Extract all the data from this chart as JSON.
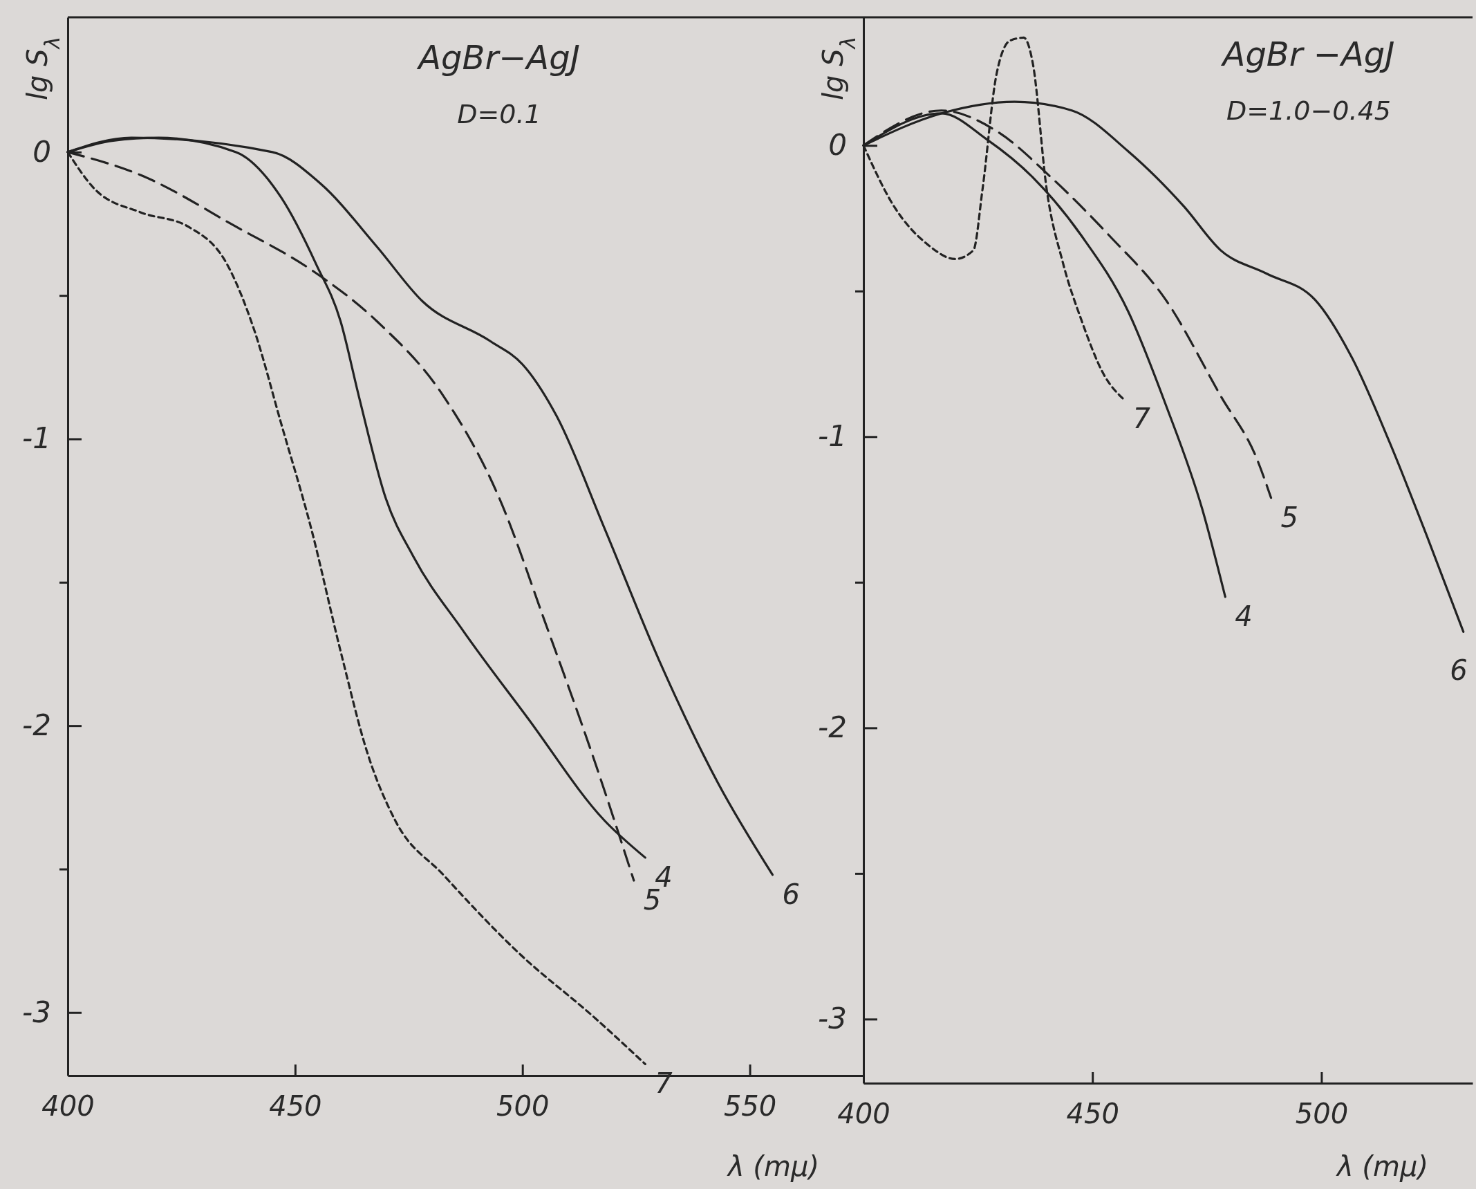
{
  "chart_data": [
    {
      "type": "line",
      "title": "AgBr−AgJ",
      "subtitle": "D=0.1",
      "xlabel": "λ (mμ)",
      "ylabel": "lg S$_{λ}$",
      "xlim": [
        400,
        575
      ],
      "ylim": [
        -3.22,
        0.47
      ],
      "xticks": [
        400,
        450,
        500,
        550
      ],
      "yticks": [
        0,
        {
          "value": -0.5,
          "label": null
        },
        -1,
        {
          "value": -1.5,
          "label": null
        },
        -2,
        {
          "value": -2.5,
          "label": null
        },
        -3
      ],
      "series": [
        {
          "name": "4",
          "color": "#222222",
          "line_style": "solid",
          "x": [
            400,
            410,
            420,
            437,
            447,
            454.6,
            460,
            464,
            470,
            476,
            487,
            501,
            518,
            527
          ],
          "values": [
            0,
            0.04,
            0.05,
            0.0,
            -0.16,
            -0.39,
            -0.59,
            -0.85,
            -1.21,
            -1.41,
            -1.67,
            -1.97,
            -2.33,
            -2.46
          ]
        },
        {
          "name": "5",
          "color": "#222222",
          "line_style": "dashed",
          "x": [
            400,
            416,
            437,
            453.5,
            468,
            482.6,
            495,
            505,
            516,
            524.5
          ],
          "values": [
            0,
            -0.08,
            -0.26,
            -0.41,
            -0.59,
            -0.85,
            -1.21,
            -1.64,
            -2.13,
            -2.54
          ]
        },
        {
          "name": "6",
          "color": "#222222",
          "line_style": "solid",
          "x": [
            400,
            414,
            445,
            455.6,
            468,
            478,
            493,
            500,
            507.5,
            518,
            530,
            543,
            555
          ],
          "values": [
            0,
            0.05,
            0.0,
            -0.11,
            -0.33,
            -0.52,
            -0.66,
            -0.74,
            -0.92,
            -1.31,
            -1.77,
            -2.2,
            -2.52
          ]
        },
        {
          "name": "7",
          "color": "#222222",
          "line_style": "dotted",
          "x": [
            400,
            406,
            416,
            426.5,
            435,
            441,
            447,
            453.5,
            460,
            466,
            472,
            482.6,
            499,
            516,
            527
          ],
          "values": [
            0,
            -0.13,
            -0.21,
            -0.26,
            -0.39,
            -0.62,
            -0.95,
            -1.31,
            -1.74,
            -2.1,
            -2.33,
            -2.52,
            -2.79,
            -3.02,
            -3.18
          ]
        }
      ]
    },
    {
      "type": "line",
      "title": "AgBr −AgJ",
      "subtitle": "D=1.0−0.45",
      "xlabel": "λ (mμ)",
      "ylabel": "lg S$_{λ}$",
      "xlim": [
        400,
        533
      ],
      "ylim": [
        -3.22,
        0.44
      ],
      "xticks": [
        400,
        450,
        500
      ],
      "yticks": [
        0,
        {
          "value": -0.5,
          "label": null
        },
        -1,
        {
          "value": -1.5,
          "label": null
        },
        -2,
        {
          "value": -2.5,
          "label": null
        },
        -3
      ],
      "series": [
        {
          "name": "4",
          "color": "#222222",
          "line_style": "solid",
          "x": [
            400,
            417,
            427,
            437,
            447.6,
            457.8,
            466,
            474,
            479
          ],
          "values": [
            0,
            0.11,
            0.02,
            -0.11,
            -0.31,
            -0.57,
            -0.89,
            -1.25,
            -1.55
          ]
        },
        {
          "name": "5",
          "color": "#222222",
          "line_style": "dashed",
          "x": [
            400,
            417,
            429,
            441,
            453.7,
            466,
            478,
            486,
            489
          ],
          "values": [
            0,
            0.12,
            0.05,
            -0.11,
            -0.31,
            -0.53,
            -0.86,
            -1.08,
            -1.21
          ]
        },
        {
          "name": "6",
          "color": "#222222",
          "line_style": "solid",
          "x": [
            400,
            417,
            433,
            445.5,
            457.8,
            470,
            478,
            488,
            498.6,
            506.7,
            514.9,
            523,
            531
          ],
          "values": [
            0,
            0.11,
            0.15,
            0.12,
            -0.02,
            -0.21,
            -0.36,
            -0.44,
            -0.53,
            -0.73,
            -1.02,
            -1.34,
            -1.67
          ]
        },
        {
          "name": "7",
          "color": "#222222",
          "line_style": "dotted",
          "x": [
            400,
            406.7,
            414,
            420,
            424,
            426,
            429,
            432,
            435,
            437,
            440,
            443.5,
            447.6,
            452.6,
            456.7
          ],
          "values": [
            0,
            -0.21,
            -0.34,
            -0.39,
            -0.36,
            -0.15,
            0.24,
            0.36,
            0.37,
            0.28,
            -0.15,
            -0.4,
            -0.6,
            -0.79,
            -0.87
          ]
        }
      ]
    }
  ]
}
